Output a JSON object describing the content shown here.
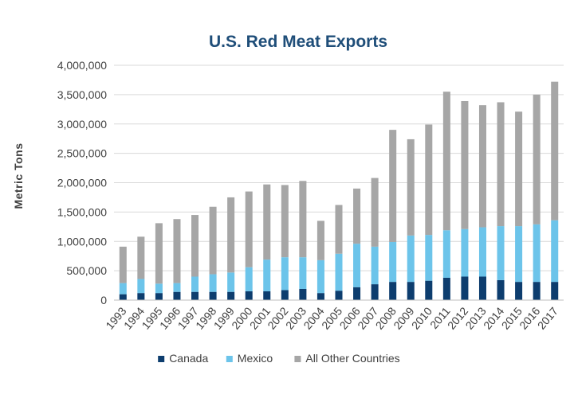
{
  "chart_data": {
    "type": "bar",
    "stacked": true,
    "title": "U.S. Red Meat Exports",
    "xlabel": "",
    "ylabel": "Metric Tons",
    "ylim": [
      0,
      4000000
    ],
    "yticks": [
      0,
      500000,
      1000000,
      1500000,
      2000000,
      2500000,
      3000000,
      3500000,
      4000000
    ],
    "ytick_labels": [
      "0",
      "500,000",
      "1,000,000",
      "1,500,000",
      "2,000,000",
      "2,500,000",
      "3,000,000",
      "3,500,000",
      "4,000,000"
    ],
    "grid": true,
    "legend_position": "bottom",
    "categories": [
      "1993",
      "1994",
      "1995",
      "1996",
      "1997",
      "1998",
      "1999",
      "2000",
      "2001",
      "2002",
      "2003",
      "2004",
      "2005",
      "2006",
      "2007",
      "2008",
      "2009",
      "2010",
      "2011",
      "2012",
      "2013",
      "2014",
      "2015",
      "2016",
      "2017"
    ],
    "series": [
      {
        "name": "Canada",
        "color": "#0d3d6e",
        "values": [
          100000,
          120000,
          120000,
          140000,
          140000,
          140000,
          140000,
          150000,
          150000,
          170000,
          190000,
          120000,
          160000,
          220000,
          270000,
          310000,
          310000,
          330000,
          380000,
          400000,
          400000,
          340000,
          310000,
          310000,
          310000
        ]
      },
      {
        "name": "Mexico",
        "color": "#6cc4ea",
        "values": [
          190000,
          240000,
          160000,
          150000,
          260000,
          300000,
          330000,
          410000,
          540000,
          560000,
          540000,
          560000,
          630000,
          740000,
          640000,
          680000,
          790000,
          780000,
          810000,
          810000,
          840000,
          920000,
          950000,
          980000,
          1050000
        ]
      },
      {
        "name": "All Other Countries",
        "color": "#a6a6a6",
        "values": [
          620000,
          720000,
          1030000,
          1090000,
          1050000,
          1150000,
          1280000,
          1290000,
          1280000,
          1230000,
          1300000,
          670000,
          830000,
          940000,
          1170000,
          1910000,
          1640000,
          1880000,
          2360000,
          2180000,
          2080000,
          2110000,
          1950000,
          2210000,
          2360000
        ]
      }
    ]
  }
}
